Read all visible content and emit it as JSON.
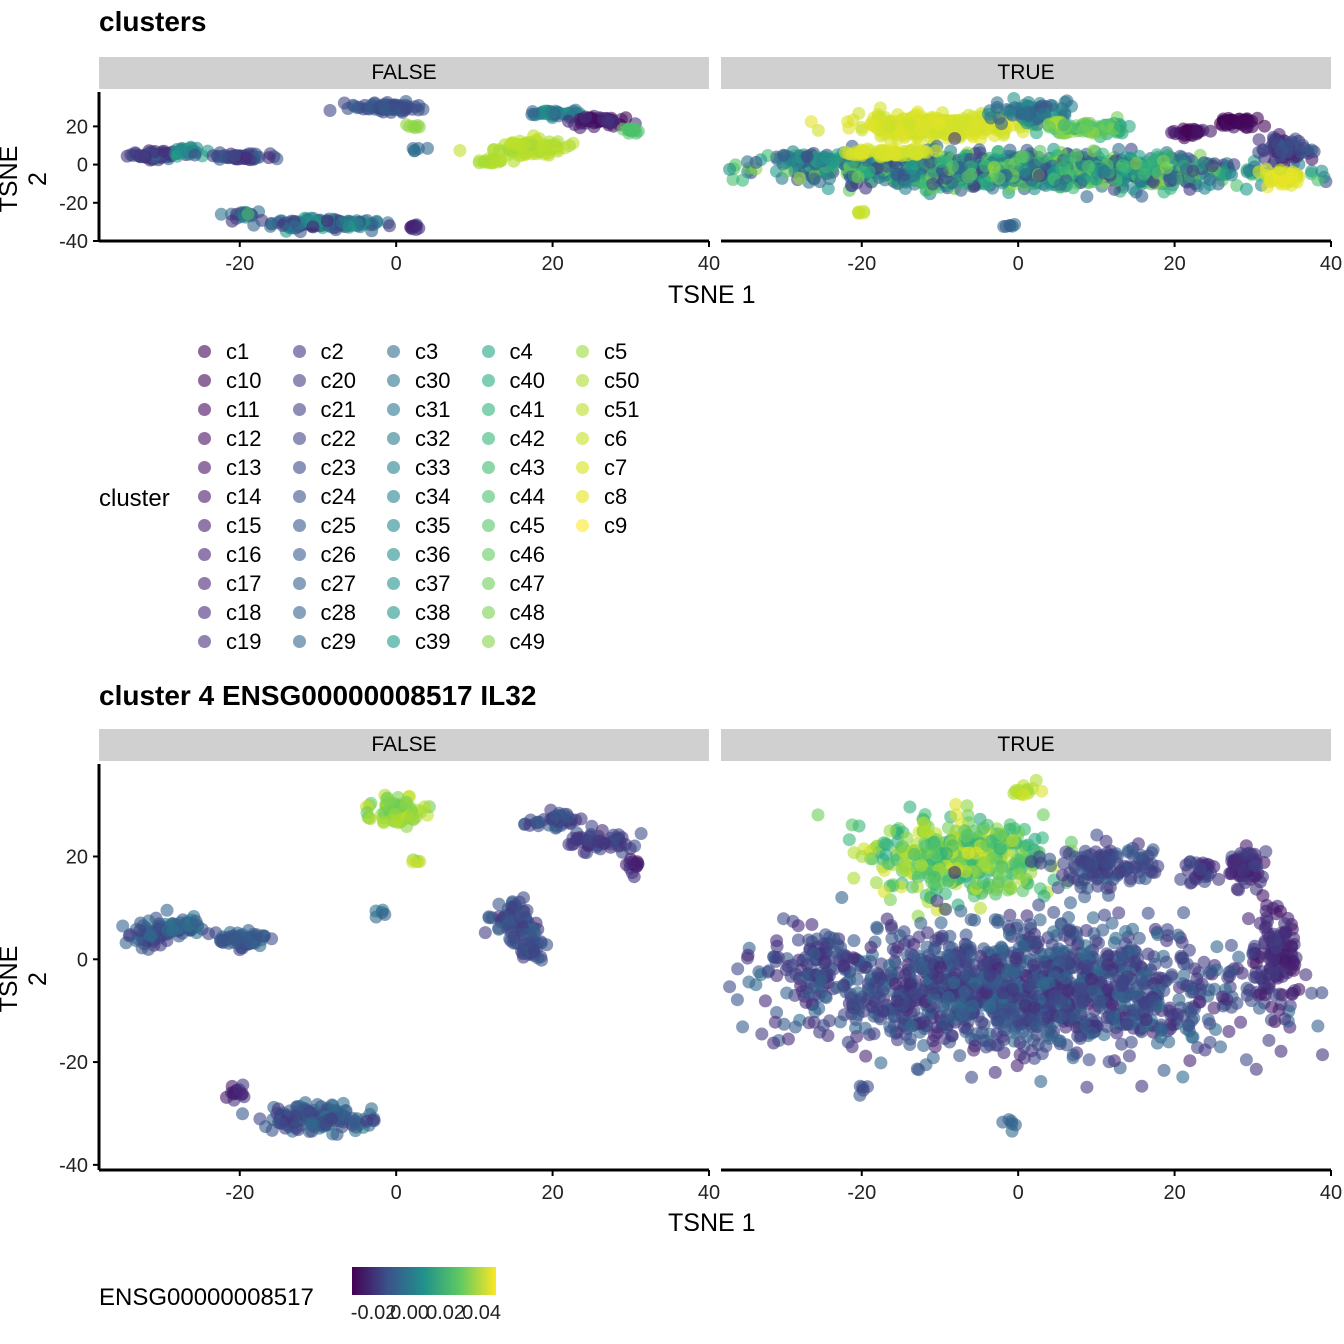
{
  "chart_data": [
    {
      "type": "scatter",
      "title": "clusters",
      "xlabel": "TSNE 1",
      "ylabel": "TSNE 2",
      "facets": [
        "FALSE",
        "TRUE"
      ],
      "xlim": [
        -38,
        40
      ],
      "ylim": [
        -40,
        38
      ],
      "x_ticks": [
        "-20",
        "0",
        "20",
        "40"
      ],
      "x_tick_values": [
        -20,
        0,
        20,
        40
      ],
      "y_ticks": [
        "20",
        "0",
        "-20",
        "-40"
      ],
      "y_tick_values": [
        20,
        0,
        -20,
        -40
      ],
      "color_by": "cluster",
      "legend": {
        "title": "cluster",
        "items": [
          {
            "label": "c1",
            "color": "#440154"
          },
          {
            "label": "c10",
            "color": "#450559"
          },
          {
            "label": "c11",
            "color": "#460a5d"
          },
          {
            "label": "c12",
            "color": "#470e61"
          },
          {
            "label": "c13",
            "color": "#471365"
          },
          {
            "label": "c14",
            "color": "#481769"
          },
          {
            "label": "c15",
            "color": "#481c6e"
          },
          {
            "label": "c16",
            "color": "#482173"
          },
          {
            "label": "c17",
            "color": "#482576"
          },
          {
            "label": "c18",
            "color": "#472a7a"
          },
          {
            "label": "c19",
            "color": "#472e7c"
          },
          {
            "label": "c2",
            "color": "#453781"
          },
          {
            "label": "c20",
            "color": "#433d84"
          },
          {
            "label": "c21",
            "color": "#424186"
          },
          {
            "label": "c22",
            "color": "#404688"
          },
          {
            "label": "c23",
            "color": "#3e4a89"
          },
          {
            "label": "c24",
            "color": "#3b528b"
          },
          {
            "label": "c25",
            "color": "#39568c"
          },
          {
            "label": "c26",
            "color": "#375b8d"
          },
          {
            "label": "c27",
            "color": "#355f8d"
          },
          {
            "label": "c28",
            "color": "#33638d"
          },
          {
            "label": "c29",
            "color": "#31688e"
          },
          {
            "label": "c3",
            "color": "#2e6f8e"
          },
          {
            "label": "c30",
            "color": "#2c738e"
          },
          {
            "label": "c31",
            "color": "#2a778e"
          },
          {
            "label": "c32",
            "color": "#287c8e"
          },
          {
            "label": "c33",
            "color": "#27808e"
          },
          {
            "label": "c34",
            "color": "#25848e"
          },
          {
            "label": "c35",
            "color": "#23898e"
          },
          {
            "label": "c36",
            "color": "#218e8d"
          },
          {
            "label": "c37",
            "color": "#20928c"
          },
          {
            "label": "c38",
            "color": "#1f968b"
          },
          {
            "label": "c39",
            "color": "#1e9b8a"
          },
          {
            "label": "c4",
            "color": "#22a785"
          },
          {
            "label": "c40",
            "color": "#27ad81"
          },
          {
            "label": "c41",
            "color": "#2eb37c"
          },
          {
            "label": "c42",
            "color": "#35b779"
          },
          {
            "label": "c43",
            "color": "#40bd72"
          },
          {
            "label": "c44",
            "color": "#4ac16d"
          },
          {
            "label": "c45",
            "color": "#56c667"
          },
          {
            "label": "c46",
            "color": "#62cb5f"
          },
          {
            "label": "c47",
            "color": "#6ece58"
          },
          {
            "label": "c48",
            "color": "#7ad151"
          },
          {
            "label": "c49",
            "color": "#86d549"
          },
          {
            "label": "c5",
            "color": "#a0da39"
          },
          {
            "label": "c50",
            "color": "#addc30"
          },
          {
            "label": "c51",
            "color": "#bade28"
          },
          {
            "label": "c6",
            "color": "#c8e020"
          },
          {
            "label": "c7",
            "color": "#d5e21a"
          },
          {
            "label": "c8",
            "color": "#e5e419"
          },
          {
            "label": "c9",
            "color": "#fde725"
          }
        ]
      }
    },
    {
      "type": "scatter",
      "title": "cluster 4 ENSG00000008517 IL32",
      "xlabel": "TSNE 1",
      "ylabel": "TSNE 2",
      "facets": [
        "FALSE",
        "TRUE"
      ],
      "xlim": [
        -38,
        40
      ],
      "ylim": [
        -41,
        38
      ],
      "x_ticks": [
        "-20",
        "0",
        "20",
        "40"
      ],
      "x_tick_values": [
        -20,
        0,
        20,
        40
      ],
      "y_ticks": [
        "20",
        "0",
        "-20",
        "-40"
      ],
      "y_tick_values": [
        20,
        0,
        -20,
        -40
      ],
      "color_by": "ENSG00000008517",
      "colorbar": {
        "title": "ENSG00000008517",
        "tick_labels": [
          "-0.02",
          "0.00",
          "0.02",
          "0.04"
        ],
        "tick_values": [
          -0.02,
          0.0,
          0.02,
          0.04
        ],
        "range": [
          -0.032,
          0.048
        ],
        "gradient": [
          "#440154",
          "#3b528b",
          "#21918c",
          "#5ec962",
          "#fde725"
        ]
      }
    }
  ]
}
